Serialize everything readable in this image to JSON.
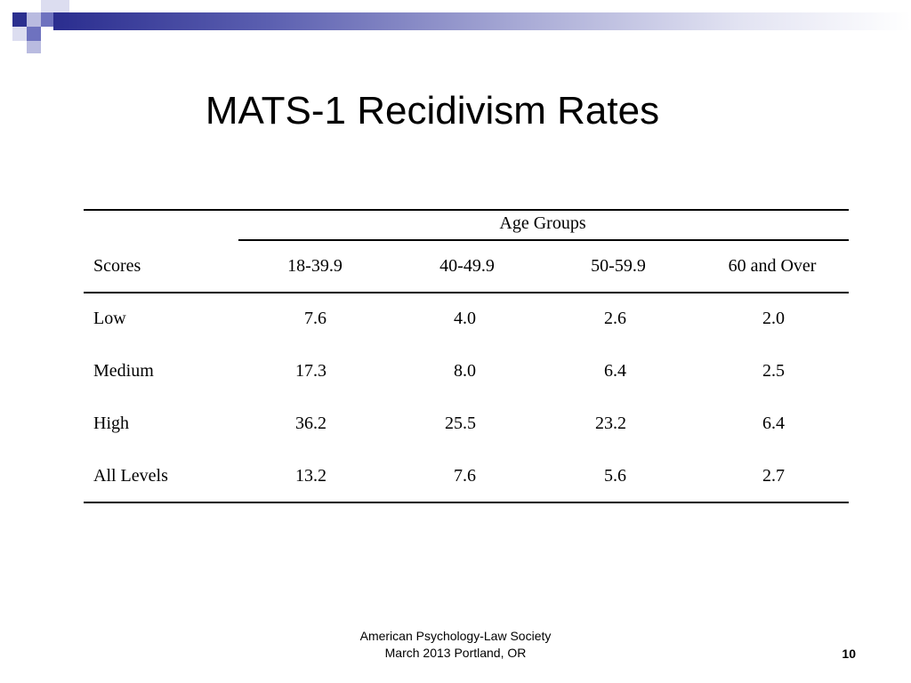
{
  "slide": {
    "title": "MATS-1 Recidivism Rates",
    "footer_line1": "American Psychology-Law Society",
    "footer_line2": "March 2013 Portland, OR",
    "page_number": "10",
    "accent_color": "#2b2f8f"
  },
  "table": {
    "group_header": "Age Groups",
    "row_header": "Scores",
    "columns": [
      "18-39.9",
      "40-49.9",
      "50-59.9",
      "60 and Over"
    ],
    "rows": [
      {
        "label": "Low",
        "values": [
          "7.6",
          "4.0",
          "2.6",
          "2.0"
        ]
      },
      {
        "label": "Medium",
        "values": [
          "17.3",
          "8.0",
          "6.4",
          "2.5"
        ]
      },
      {
        "label": "High",
        "values": [
          "36.2",
          "25.5",
          "23.2",
          "6.4"
        ]
      },
      {
        "label": "All Levels",
        "values": [
          "13.2",
          "7.6",
          "5.6",
          "2.7"
        ]
      }
    ]
  }
}
